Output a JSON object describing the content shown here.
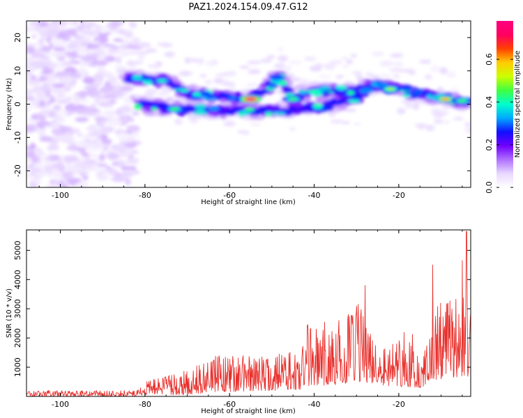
{
  "figure": {
    "title": "PAZ1.2024.154.09.47.G12"
  },
  "chart_data": [
    {
      "type": "heatmap",
      "xlabel": "Height of straight line (km)",
      "ylabel": "Frequency (Hz)",
      "xlim": [
        -108,
        -3
      ],
      "ylim": [
        -25,
        25
      ],
      "xticks": [
        -100,
        -80,
        -60,
        -40,
        -20
      ],
      "yticks": [
        -20,
        -10,
        0,
        10,
        20
      ],
      "colorbar": {
        "label": "Normalized spectral amplitude",
        "range": [
          0,
          0.78
        ],
        "ticks": [
          0.0,
          0.2,
          0.4,
          0.6
        ],
        "colormap": [
          "#ffffff",
          "#e8d8ff",
          "#b070ff",
          "#7000ff",
          "#1010ff",
          "#00aaff",
          "#00ffcc",
          "#40ff40",
          "#ccff00",
          "#ffcc00",
          "#ff4000",
          "#ff0060",
          "#ff0080"
        ]
      },
      "ridge": [
        {
          "x": -82,
          "y": 8
        },
        {
          "x": -75,
          "y": 7
        },
        {
          "x": -70,
          "y": 3
        },
        {
          "x": -60,
          "y": 2
        },
        {
          "x": -55,
          "y": 1.5
        },
        {
          "x": -48,
          "y": 8
        },
        {
          "x": -45,
          "y": 1.5
        },
        {
          "x": -40,
          "y": 4
        },
        {
          "x": -30,
          "y": 4
        },
        {
          "x": -25,
          "y": 6
        },
        {
          "x": -20,
          "y": 4
        },
        {
          "x": -10,
          "y": 2
        },
        {
          "x": -5,
          "y": 1
        }
      ],
      "secondary_ridge": [
        {
          "x": -80,
          "y": 0
        },
        {
          "x": -72,
          "y": -1.5
        },
        {
          "x": -60,
          "y": -2
        },
        {
          "x": -50,
          "y": -2
        },
        {
          "x": -40,
          "y": -1
        },
        {
          "x": -30,
          "y": 2
        }
      ],
      "hotspots": [
        {
          "x": -76,
          "y": 7,
          "amp": 0.4
        },
        {
          "x": -73,
          "y": -1.5,
          "amp": 0.45
        },
        {
          "x": -55,
          "y": 1.5,
          "amp": 0.78
        },
        {
          "x": -45,
          "y": 1.5,
          "amp": 0.45
        },
        {
          "x": -22,
          "y": 4.5,
          "amp": 0.5
        },
        {
          "x": -9,
          "y": 1.5,
          "amp": 0.6
        },
        {
          "x": -5,
          "y": 1,
          "amp": 0.45
        }
      ]
    },
    {
      "type": "line",
      "xlabel": "Height of straight line (km)",
      "ylabel": "SNR (10 * v/v)",
      "xlim": [
        -108,
        -3
      ],
      "ylim": [
        0,
        5700
      ],
      "xticks": [
        -100,
        -80,
        -60,
        -40,
        -20
      ],
      "yticks": [
        1000,
        2000,
        3000,
        4000,
        5000
      ],
      "color": "#e8302c",
      "envelope": [
        {
          "x": -108,
          "low": 0,
          "high": 200
        },
        {
          "x": -82,
          "low": 0,
          "high": 200
        },
        {
          "x": -80,
          "low": 50,
          "high": 500
        },
        {
          "x": -72,
          "low": 50,
          "high": 800
        },
        {
          "x": -62,
          "low": 150,
          "high": 1500
        },
        {
          "x": -52,
          "low": 200,
          "high": 1300
        },
        {
          "x": -43,
          "low": 200,
          "high": 1600
        },
        {
          "x": -42,
          "low": 300,
          "high": 2900
        },
        {
          "x": -35,
          "low": 400,
          "high": 2300
        },
        {
          "x": -30,
          "low": 500,
          "high": 3400
        },
        {
          "x": -25,
          "low": 400,
          "high": 1500
        },
        {
          "x": -17,
          "low": 300,
          "high": 2400
        },
        {
          "x": -15,
          "low": 300,
          "high": 1000
        },
        {
          "x": -10,
          "low": 600,
          "high": 3600
        },
        {
          "x": -3,
          "low": 700,
          "high": 3300
        }
      ],
      "peaks": [
        {
          "x": -28,
          "y": 3800
        },
        {
          "x": -12,
          "y": 4500
        },
        {
          "x": -5,
          "y": 4650
        },
        {
          "x": -4,
          "y": 5650
        }
      ]
    }
  ]
}
